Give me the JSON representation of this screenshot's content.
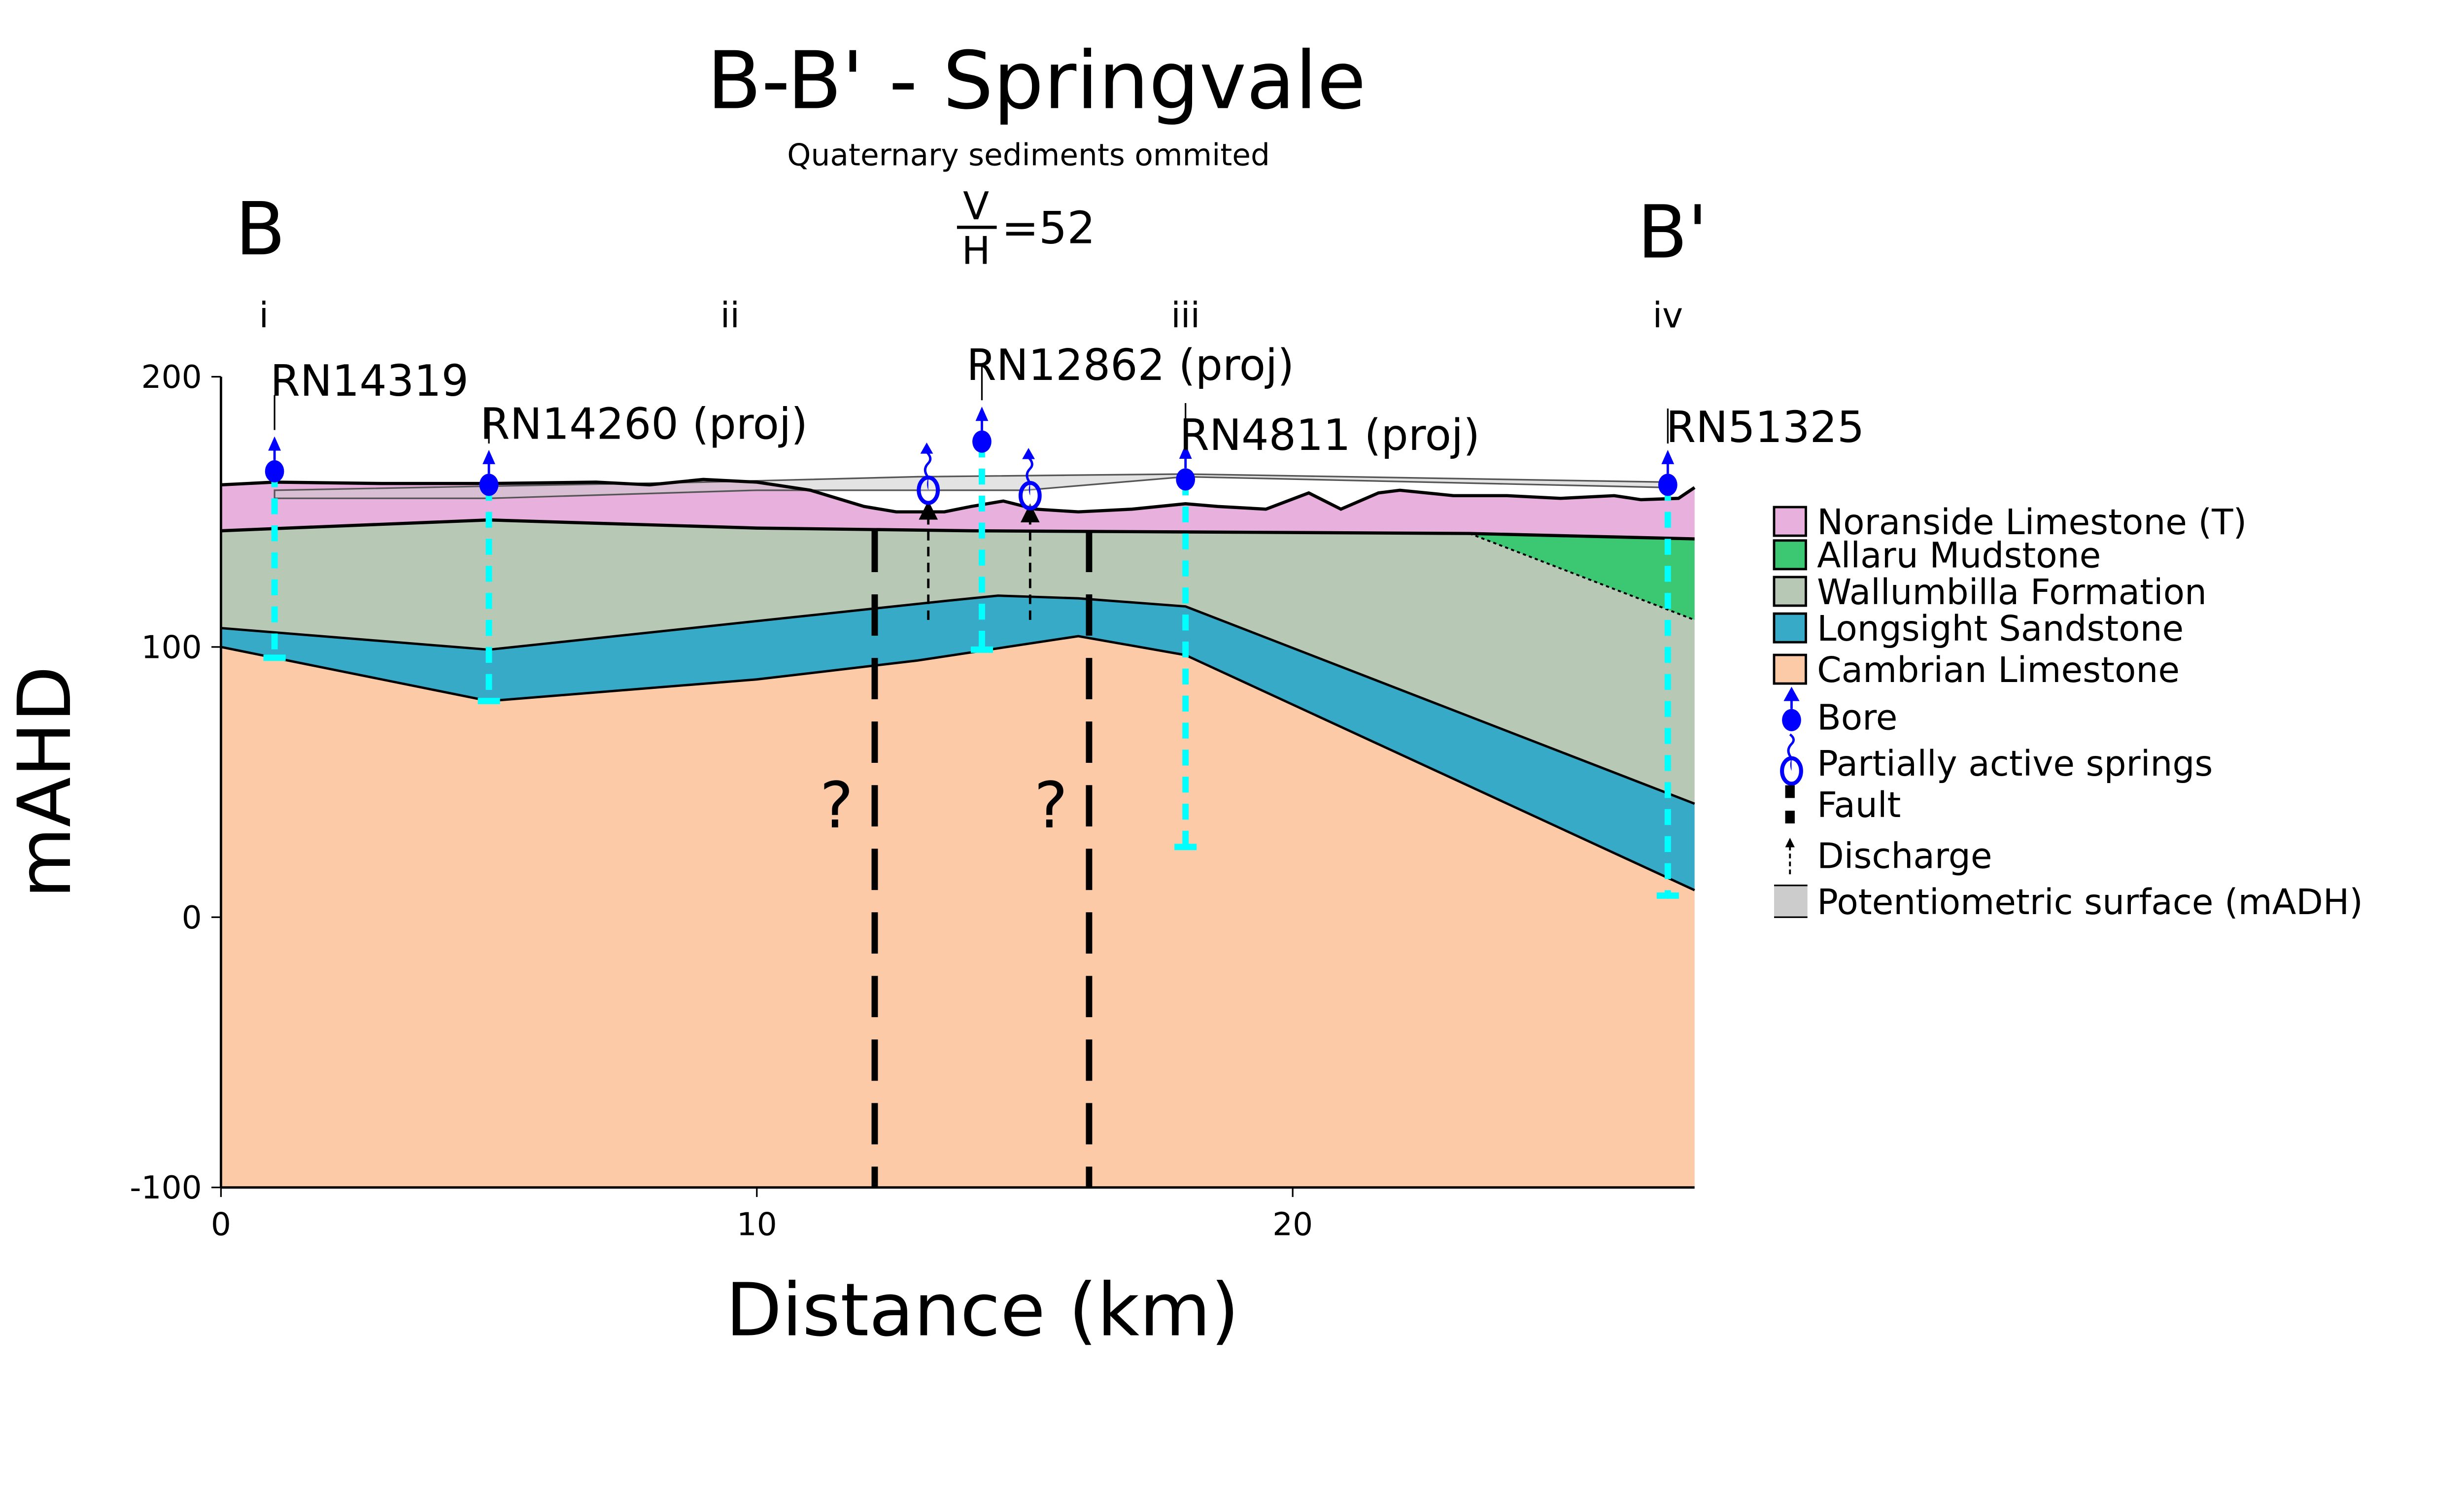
{
  "title": "B-B' - Springvale",
  "subtitle": "Quaternary sediments ommited",
  "end_left": "B",
  "end_right": "B'",
  "ratio": {
    "num": "V",
    "den": "H",
    "value": "=52"
  },
  "sections": [
    {
      "label": "i",
      "x": 0.8
    },
    {
      "label": "ii",
      "x": 9.5
    },
    {
      "label": "iii",
      "x": 18
    },
    {
      "label": "iv",
      "x": 27
    }
  ],
  "chart_data": {
    "type": "area",
    "xlabel": "Distance (km)",
    "ylabel": "mAHD",
    "xlim": [
      0,
      27.5
    ],
    "ylim": [
      -100,
      200
    ],
    "xticks": [
      {
        "v": 0,
        "label": "0"
      },
      {
        "v": 10,
        "label": "10"
      },
      {
        "v": 20,
        "label": "20"
      }
    ],
    "yticks": [
      {
        "v": 200,
        "label": "200"
      },
      {
        "v": 100,
        "label": "100"
      },
      {
        "v": 0,
        "label": "0"
      },
      {
        "v": -100,
        "label": "-100"
      }
    ],
    "colors": {
      "noranside": "#e8b0dc",
      "allaru": "#3cc873",
      "wallumbilla": "#b7c8b5",
      "longsight": "#37aac8",
      "cambrian": "#fdcaa7",
      "bore": "#0000ff",
      "bore_line": "#00ffff",
      "potentiometric": "#cccccc"
    },
    "surfaces": {
      "ground": [
        [
          0,
          160
        ],
        [
          1,
          161
        ],
        [
          3,
          160.5
        ],
        [
          5,
          160.5
        ],
        [
          7,
          161
        ],
        [
          8,
          160
        ],
        [
          9,
          162
        ],
        [
          10,
          161
        ],
        [
          11,
          158
        ],
        [
          12,
          152
        ],
        [
          12.6,
          150
        ],
        [
          13.5,
          150
        ],
        [
          14,
          152
        ],
        [
          14.6,
          154
        ],
        [
          15.2,
          151
        ],
        [
          16,
          150
        ],
        [
          17,
          151
        ],
        [
          18,
          153
        ],
        [
          18.6,
          152
        ],
        [
          19.5,
          151
        ],
        [
          20.3,
          157
        ],
        [
          20.9,
          151
        ],
        [
          21.6,
          157
        ],
        [
          22,
          158
        ],
        [
          23,
          156
        ],
        [
          24,
          156
        ],
        [
          25,
          155
        ],
        [
          26,
          156
        ],
        [
          26.5,
          154.5
        ],
        [
          27.2,
          155
        ],
        [
          27.5,
          159
        ]
      ],
      "noranside_base": [
        [
          0,
          143
        ],
        [
          5,
          147
        ],
        [
          10,
          144
        ],
        [
          14,
          143
        ],
        [
          23.3,
          142
        ],
        [
          27.5,
          140
        ]
      ],
      "allaru_base": [
        [
          23.3,
          142
        ],
        [
          27.5,
          110
        ]
      ],
      "longsight_top": [
        [
          0,
          107
        ],
        [
          5,
          99
        ],
        [
          13.5,
          117
        ],
        [
          14.5,
          119
        ],
        [
          16,
          118
        ],
        [
          18,
          115
        ],
        [
          27.5,
          42
        ]
      ],
      "longsight_base": [
        [
          0,
          100
        ],
        [
          5,
          80
        ],
        [
          10,
          88
        ],
        [
          13,
          95
        ],
        [
          16,
          104
        ],
        [
          18,
          97
        ],
        [
          27.5,
          10
        ]
      ],
      "potentiometric_top": [
        [
          1,
          158
        ],
        [
          9,
          161
        ],
        [
          13,
          163
        ],
        [
          18,
          164
        ],
        [
          27,
          161
        ]
      ],
      "potentiometric_base": [
        [
          1,
          155
        ],
        [
          5,
          155
        ],
        [
          10,
          158
        ],
        [
          15,
          158
        ],
        [
          18,
          163
        ],
        [
          27,
          159
        ]
      ]
    },
    "bores": [
      {
        "name": "RN14319",
        "x": 1,
        "top": 165,
        "bottom": 96
      },
      {
        "name": "RN14260 (proj)",
        "x": 5,
        "top": 160,
        "bottom": 80
      },
      {
        "name": "RN12862 (proj)",
        "x": 14.2,
        "top": 176,
        "bottom": 99
      },
      {
        "name": "RN4811 (proj)",
        "x": 18,
        "top": 162,
        "bottom": 26
      },
      {
        "name": "RN51325",
        "x": 27,
        "top": 160,
        "bottom": 8
      }
    ],
    "springs": [
      {
        "x": 13.2,
        "y": 158
      },
      {
        "x": 15.1,
        "y": 156
      }
    ],
    "discharge": [
      {
        "x": 13.2,
        "from": 110,
        "to": 153
      },
      {
        "x": 15.1,
        "from": 110,
        "to": 152
      }
    ],
    "faults": [
      {
        "x": 12.2,
        "top": 143,
        "bottom": -100,
        "label": "?"
      },
      {
        "x": 16.2,
        "top": 143,
        "bottom": -100,
        "label": "?"
      }
    ],
    "legend": [
      {
        "label": "Noranside Limestone (T)",
        "kind": "patch",
        "color": "#e8b0dc"
      },
      {
        "label": "Allaru Mudstone",
        "kind": "patch",
        "color": "#3cc873"
      },
      {
        "label": "Wallumbilla Formation",
        "kind": "patch",
        "color": "#b7c8b5"
      },
      {
        "label": "Longsight Sandstone",
        "kind": "patch",
        "color": "#37aac8"
      },
      {
        "label": "Cambrian Limestone",
        "kind": "patch",
        "color": "#fdcaa7"
      },
      {
        "label": "Bore",
        "kind": "bore"
      },
      {
        "label": "Partially active springs",
        "kind": "spring"
      },
      {
        "label": "Fault",
        "kind": "fault"
      },
      {
        "label": "Discharge",
        "kind": "discharge"
      },
      {
        "label": "Potentiometric surface (mADH)",
        "kind": "pot"
      }
    ]
  }
}
